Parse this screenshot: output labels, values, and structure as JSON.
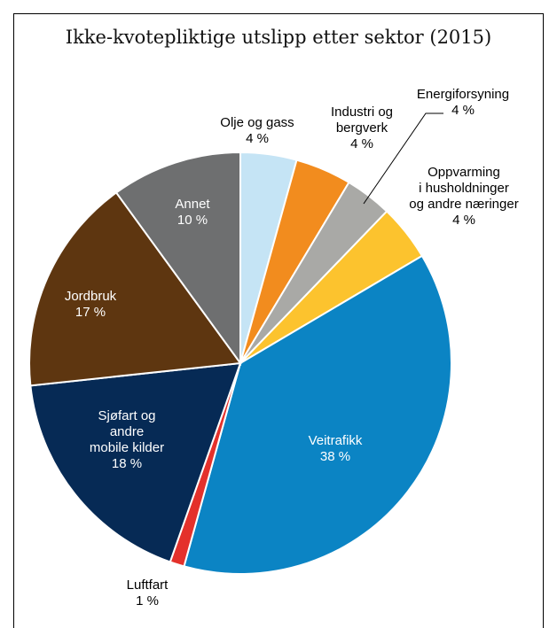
{
  "chart_data": {
    "type": "pie",
    "title": "Ikke-kvotepliktige utslipp etter sektor (2015)",
    "start_angle_deg": 0,
    "direction": "clockwise",
    "slices": [
      {
        "label": "Olje og gass",
        "value_label": "4 %",
        "value": 4.3,
        "color": "#c5e4f5",
        "label_color": "#000000"
      },
      {
        "label": "Industri og bergverk",
        "value_label": "4 %",
        "value": 4.3,
        "color": "#f28c1e",
        "label_color": "#000000"
      },
      {
        "label": "Energiforsyning",
        "value_label": "4 %",
        "value": 3.6,
        "color": "#a9a9a6",
        "label_color": "#000000"
      },
      {
        "label": "Oppvarming i husholdninger og andre næringer",
        "value_label": "4 %",
        "value": 4.3,
        "color": "#fcc32e",
        "label_color": "#000000"
      },
      {
        "label": "Veitrafikk",
        "value_label": "38 %",
        "value": 37.8,
        "color": "#0b84c4",
        "label_color": "#ffffff"
      },
      {
        "label": "Luftfart",
        "value_label": "1 %",
        "value": 1.1,
        "color": "#e4312b",
        "label_color": "#000000"
      },
      {
        "label": "Sjøfart og andre mobile kilder",
        "value_label": "18 %",
        "value": 17.9,
        "color": "#062a55",
        "label_color": "#ffffff"
      },
      {
        "label": "Jordbruk",
        "value_label": "17 %",
        "value": 16.7,
        "color": "#5e3610",
        "label_color": "#ffffff"
      },
      {
        "label": "Annet",
        "value_label": "10 %",
        "value": 10.0,
        "color": "#6e6f70",
        "label_color": "#ffffff"
      }
    ]
  }
}
